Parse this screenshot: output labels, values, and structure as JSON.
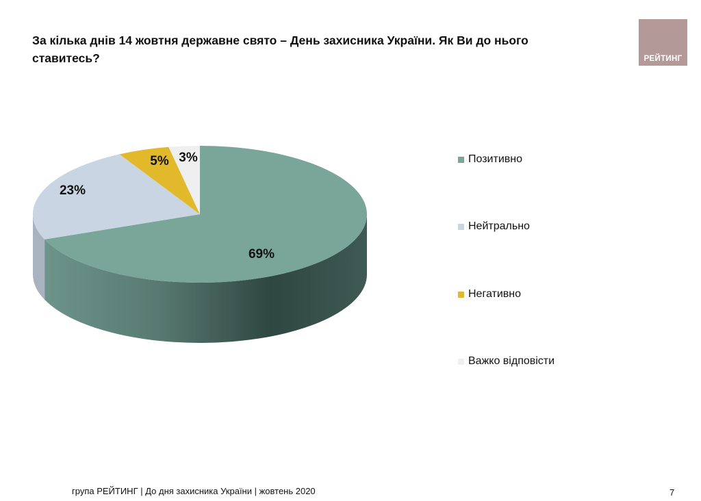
{
  "title": "За кілька днів 14 жовтня державне свято – День захисника України. Як Ви до нього ставитесь?",
  "logo": {
    "text": "РЕЙТИНГ",
    "color": "#b39a98"
  },
  "chart_data": {
    "type": "pie",
    "style": "3d",
    "categories": [
      "Позитивно",
      "Нейтрально",
      "Негативно",
      "Важко відповісти"
    ],
    "values": [
      69,
      23,
      5,
      3
    ],
    "data_labels": [
      "69%",
      "23%",
      "5%",
      "3%"
    ],
    "colors": [
      "#7aa699",
      "#c9d5e2",
      "#e3b92c",
      "#efefef"
    ],
    "legend_position": "right"
  },
  "footer": "група РЕЙТИНГ  | До дня захисника України | жовтень 2020",
  "page_number": "7"
}
